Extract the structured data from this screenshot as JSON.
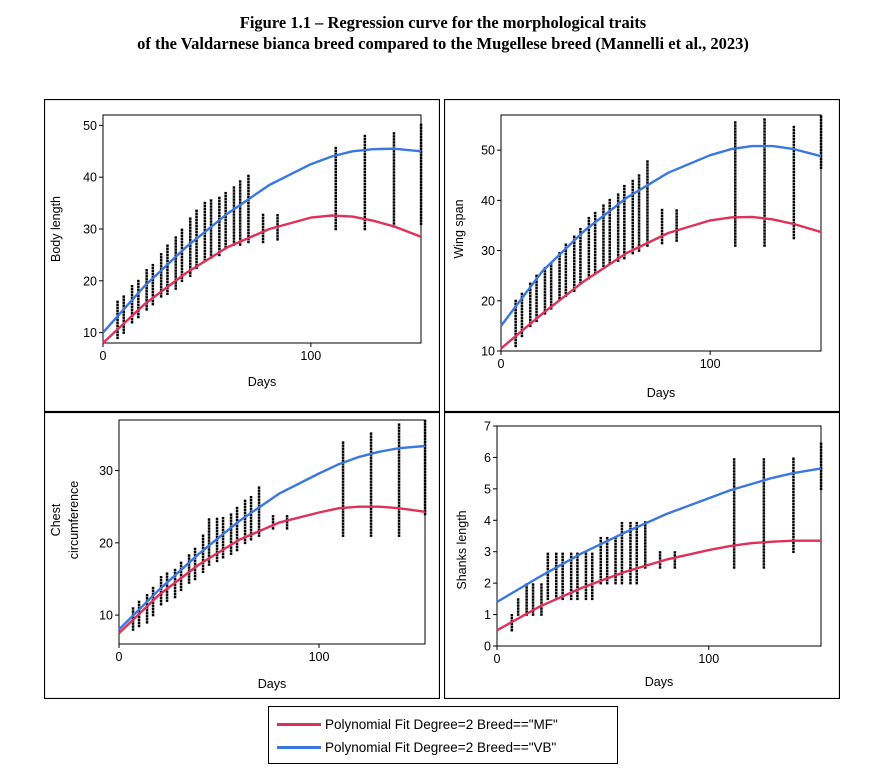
{
  "figure": {
    "title_line1": "Figure 1.1 – Regression curve for the morphological traits",
    "title_line2": "of the Valdarnese bianca breed compared to the Mugellese breed (Mannelli et al., 2023)"
  },
  "legend": {
    "items": [
      {
        "label": "Polynomial Fit Degree=2 Breed==\"MF\"",
        "color": "#e0305a"
      },
      {
        "label": "Polynomial Fit Degree=2 Breed==\"VB\"",
        "color": "#3a78e0"
      }
    ]
  },
  "chart_data": [
    {
      "type": "scatter",
      "ylabel": "Body length",
      "xlabel": "Days",
      "xlim": [
        0,
        153
      ],
      "ylim": [
        8,
        52
      ],
      "xticks": [
        0,
        100
      ],
      "yticks": [
        10,
        20,
        30,
        40,
        50
      ],
      "grid": false,
      "series": [
        {
          "color": "#e0305a",
          "curve": {
            "x": [
              0,
              20,
              40,
              60,
              80,
              100,
              110,
              120,
              130,
              140,
              153
            ],
            "y": [
              8,
              15.5,
              21.5,
              26.5,
              30,
              32.2,
              32.6,
              32.4,
              31.6,
              30.5,
              28.5
            ]
          }
        },
        {
          "color": "#3a78e0",
          "curve": {
            "x": [
              0,
              20,
              40,
              60,
              80,
              100,
              110,
              120,
              130,
              140,
              153
            ],
            "y": [
              10,
              19,
              26.5,
              33,
              38.5,
              42.5,
              44,
              45,
              45.4,
              45.5,
              45
            ]
          }
        }
      ],
      "scatter": {
        "x": [
          7,
          10,
          14,
          17,
          21,
          24,
          28,
          31,
          35,
          38,
          42,
          45,
          49,
          52,
          56,
          59,
          63,
          66,
          70,
          77,
          84,
          112,
          126,
          140,
          153
        ],
        "y_min": [
          9,
          10,
          12,
          13,
          14.5,
          15.5,
          17,
          17.5,
          18.5,
          20,
          21,
          22.5,
          24,
          24.5,
          25,
          26.5,
          27,
          27,
          27.5,
          27.5,
          28,
          30,
          30,
          30.5,
          31
        ],
        "y_max": [
          16,
          17,
          19,
          20.5,
          22.5,
          23.5,
          25.5,
          27,
          28.5,
          30,
          32,
          33.5,
          35,
          35.5,
          36,
          37,
          38.5,
          39.5,
          40.5,
          33,
          33,
          46,
          48,
          49,
          50.5
        ]
      }
    },
    {
      "type": "scatter",
      "ylabel": "Wing span",
      "xlabel": "Days",
      "xlim": [
        0,
        153
      ],
      "ylim": [
        10,
        57
      ],
      "xticks": [
        0,
        100
      ],
      "yticks": [
        10,
        20,
        30,
        40,
        50
      ],
      "grid": false,
      "series": [
        {
          "color": "#e0305a",
          "curve": {
            "x": [
              0,
              20,
              40,
              60,
              80,
              100,
              110,
              120,
              130,
              140,
              153
            ],
            "y": [
              10.5,
              17.5,
              24,
              29.5,
              33.5,
              36,
              36.6,
              36.7,
              36.2,
              35.3,
              33.7
            ]
          }
        },
        {
          "color": "#3a78e0",
          "curve": {
            "x": [
              0,
              20,
              40,
              60,
              80,
              100,
              110,
              120,
              130,
              140,
              153
            ],
            "y": [
              15,
              26,
              34,
              40.5,
              45.5,
              49,
              50.2,
              50.8,
              50.8,
              50.2,
              48.8
            ]
          }
        }
      ],
      "scatter": {
        "x": [
          7,
          10,
          14,
          17,
          21,
          24,
          28,
          31,
          35,
          38,
          42,
          45,
          49,
          52,
          56,
          59,
          63,
          66,
          70,
          77,
          84,
          112,
          126,
          140,
          153
        ],
        "y_min": [
          11,
          13,
          15,
          16,
          17.5,
          18.5,
          20.5,
          21,
          22,
          23.5,
          24.5,
          25.5,
          27,
          27.5,
          28,
          28.5,
          29.5,
          30,
          31,
          31.5,
          32,
          31,
          31,
          32.5,
          46.5
        ],
        "y_max": [
          20,
          21.5,
          23.5,
          25,
          27,
          28,
          30,
          31.5,
          33,
          34.5,
          36.5,
          38,
          39.5,
          40.5,
          41.5,
          43,
          44,
          45.5,
          48,
          38.5,
          38.5,
          56,
          56.5,
          55,
          57
        ]
      }
    },
    {
      "type": "scatter",
      "ylabel": "Chest circumference",
      "xlabel": "Days",
      "xlim": [
        0,
        153
      ],
      "ylim": [
        6,
        37
      ],
      "xticks": [
        0,
        100
      ],
      "yticks": [
        10,
        20,
        30
      ],
      "grid": false,
      "series": [
        {
          "color": "#e0305a",
          "curve": {
            "x": [
              0,
              20,
              40,
              60,
              80,
              100,
              110,
              120,
              130,
              140,
              153
            ],
            "y": [
              7.5,
              12.8,
              17,
              20.4,
              22.8,
              24.2,
              24.8,
              25,
              25,
              24.8,
              24.3
            ]
          }
        },
        {
          "color": "#3a78e0",
          "curve": {
            "x": [
              0,
              20,
              40,
              60,
              80,
              100,
              110,
              120,
              130,
              140,
              153
            ],
            "y": [
              8,
              13.5,
              18.5,
              23,
              26.8,
              29.6,
              30.9,
              31.9,
              32.6,
              33.1,
              33.4
            ]
          }
        }
      ],
      "scatter": {
        "x": [
          7,
          10,
          14,
          17,
          21,
          24,
          28,
          31,
          35,
          38,
          42,
          45,
          49,
          52,
          56,
          59,
          63,
          66,
          70,
          77,
          84,
          112,
          126,
          140,
          153
        ],
        "y_min": [
          8,
          8.5,
          9,
          10,
          11.5,
          12,
          12.5,
          13.5,
          14.5,
          15,
          16,
          17,
          17.5,
          18,
          18.5,
          19,
          20,
          20.5,
          21,
          22,
          22,
          21,
          21,
          21,
          24
        ],
        "y_max": [
          11,
          12,
          13,
          14,
          15.5,
          16,
          16.5,
          17.5,
          18.5,
          19.5,
          21,
          23.5,
          23.5,
          23.5,
          24,
          25,
          26,
          26.5,
          28,
          24,
          24,
          34,
          35.5,
          36.5,
          37
        ]
      }
    },
    {
      "type": "scatter",
      "ylabel": "Shanks length",
      "xlabel": "Days",
      "xlim": [
        0,
        153
      ],
      "ylim": [
        0,
        7
      ],
      "xticks": [
        0,
        100
      ],
      "yticks": [
        0,
        1,
        2,
        3,
        4,
        5,
        6,
        7
      ],
      "grid": false,
      "series": [
        {
          "color": "#e0305a",
          "curve": {
            "x": [
              0,
              20,
              40,
              60,
              80,
              100,
              110,
              120,
              130,
              140,
              153
            ],
            "y": [
              0.5,
              1.25,
              1.85,
              2.35,
              2.75,
              3.05,
              3.18,
              3.27,
              3.32,
              3.35,
              3.35
            ]
          }
        },
        {
          "color": "#3a78e0",
          "curve": {
            "x": [
              0,
              20,
              40,
              60,
              80,
              100,
              110,
              120,
              130,
              140,
              153
            ],
            "y": [
              1.4,
              2.2,
              2.95,
              3.6,
              4.2,
              4.7,
              4.95,
              5.15,
              5.35,
              5.5,
              5.65
            ]
          }
        }
      ],
      "scatter": {
        "x": [
          7,
          10,
          14,
          17,
          21,
          24,
          28,
          31,
          35,
          38,
          42,
          45,
          49,
          52,
          56,
          59,
          63,
          66,
          70,
          77,
          84,
          112,
          126,
          140,
          153
        ],
        "y_min": [
          0.5,
          1,
          1,
          1,
          1,
          1.5,
          1.5,
          1.5,
          1.5,
          1.5,
          1.5,
          1.5,
          2,
          2,
          2,
          2,
          2,
          2,
          2.5,
          2.5,
          2.5,
          2.5,
          2.5,
          3,
          5
        ],
        "y_max": [
          1,
          1.5,
          2,
          2,
          2,
          3,
          3,
          3,
          3,
          3,
          3,
          3,
          3.5,
          3.5,
          3.5,
          4,
          4,
          4,
          4,
          3,
          3,
          6,
          6,
          6,
          6.5
        ]
      }
    }
  ]
}
